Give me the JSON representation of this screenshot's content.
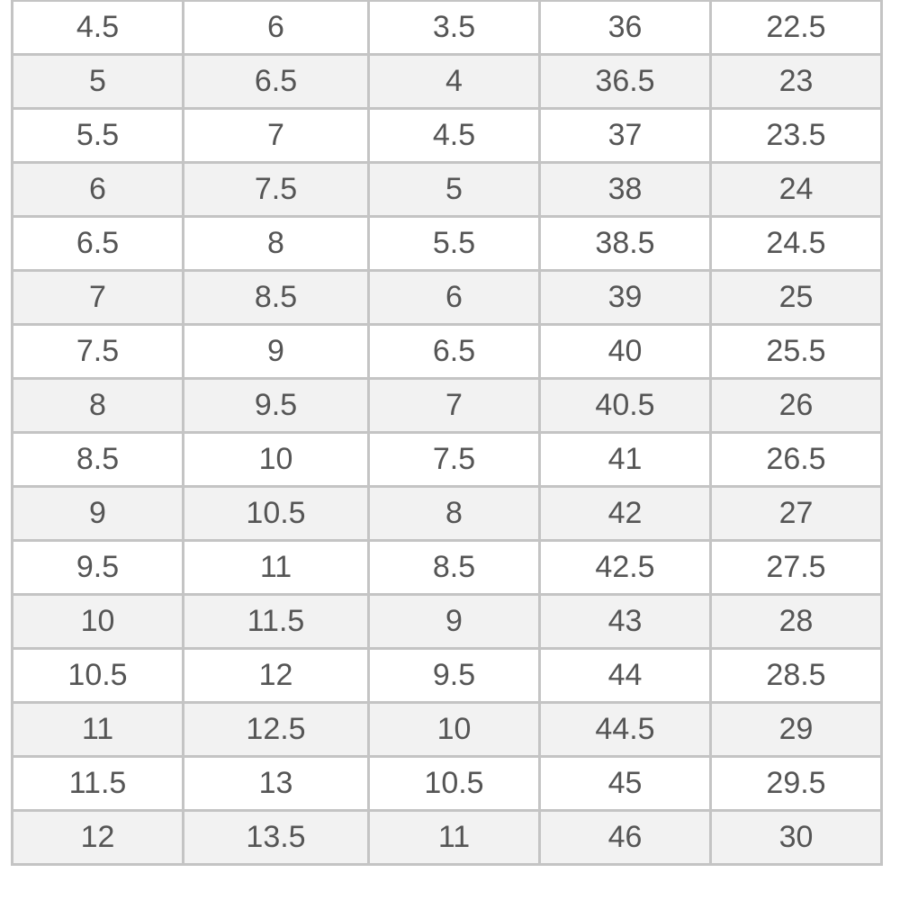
{
  "size_table": {
    "rows": [
      [
        "4.5",
        "6",
        "3.5",
        "36",
        "22.5"
      ],
      [
        "5",
        "6.5",
        "4",
        "36.5",
        "23"
      ],
      [
        "5.5",
        "7",
        "4.5",
        "37",
        "23.5"
      ],
      [
        "6",
        "7.5",
        "5",
        "38",
        "24"
      ],
      [
        "6.5",
        "8",
        "5.5",
        "38.5",
        "24.5"
      ],
      [
        "7",
        "8.5",
        "6",
        "39",
        "25"
      ],
      [
        "7.5",
        "9",
        "6.5",
        "40",
        "25.5"
      ],
      [
        "8",
        "9.5",
        "7",
        "40.5",
        "26"
      ],
      [
        "8.5",
        "10",
        "7.5",
        "41",
        "26.5"
      ],
      [
        "9",
        "10.5",
        "8",
        "42",
        "27"
      ],
      [
        "9.5",
        "11",
        "8.5",
        "42.5",
        "27.5"
      ],
      [
        "10",
        "11.5",
        "9",
        "43",
        "28"
      ],
      [
        "10.5",
        "12",
        "9.5",
        "44",
        "28.5"
      ],
      [
        "11",
        "12.5",
        "10",
        "44.5",
        "29"
      ],
      [
        "11.5",
        "13",
        "10.5",
        "45",
        "29.5"
      ],
      [
        "12",
        "13.5",
        "11",
        "46",
        "30"
      ]
    ]
  }
}
